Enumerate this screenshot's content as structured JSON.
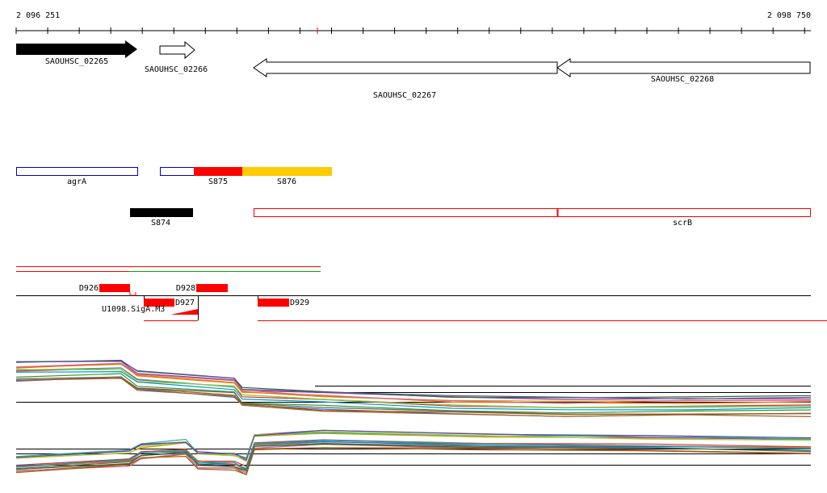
{
  "ruler": {
    "start": "2 096 251",
    "end": "2 098 750"
  },
  "genes": [
    {
      "label": "SAOUHSC_02265"
    },
    {
      "label": "SAOUHSC_02266"
    },
    {
      "label": "SAOUHSC_02267"
    },
    {
      "label": "SAOUHSC_02268"
    }
  ],
  "features": [
    {
      "label": "agrA"
    },
    {
      "label": "S875"
    },
    {
      "label": "S876"
    },
    {
      "label": "S874"
    },
    {
      "label": "scrB"
    }
  ],
  "segments": [
    {
      "label": "D926"
    },
    {
      "label": "D928"
    },
    {
      "label": "D927"
    },
    {
      "label": "D929"
    },
    {
      "label": "U1098.SigA.M3"
    }
  ]
}
